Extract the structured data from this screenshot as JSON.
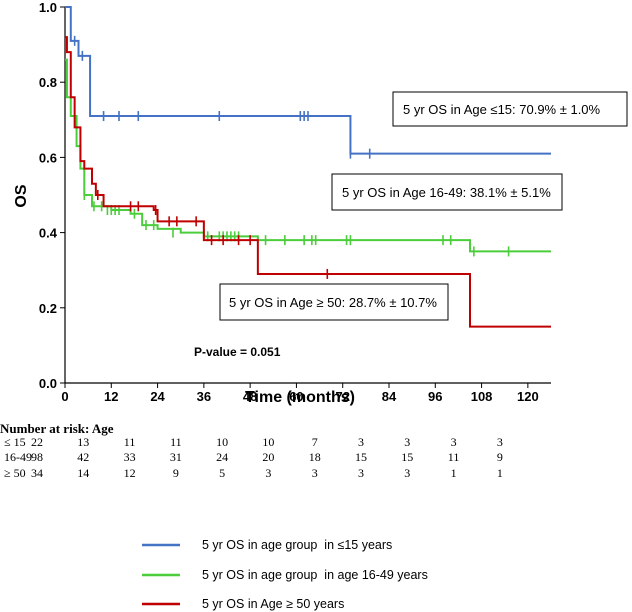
{
  "chart_data": {
    "type": "line",
    "subtype": "kaplan-meier",
    "xlabel": "Time (months)",
    "ylabel": "OS",
    "xlim": [
      0,
      126
    ],
    "ylim": [
      0,
      1.0
    ],
    "x_ticks": [
      0,
      12,
      24,
      36,
      48,
      60,
      72,
      84,
      96,
      108,
      120
    ],
    "y_ticks": [
      0.0,
      0.2,
      0.4,
      0.6,
      0.8,
      1.0
    ],
    "y_tick_labels": [
      "0.0",
      "0.2",
      "0.4",
      "0.6",
      "0.8",
      "1.0"
    ],
    "series": [
      {
        "name": "5 yr OS in age group  in ≤15 years",
        "color": "#4472c4",
        "steps": [
          [
            0,
            1.0
          ],
          [
            1.5,
            0.91
          ],
          [
            3.5,
            0.87
          ],
          [
            6.5,
            0.71
          ],
          [
            74,
            0.61
          ],
          [
            126,
            0.61
          ]
        ],
        "censors": [
          [
            2.5,
            0.91
          ],
          [
            4.5,
            0.87
          ],
          [
            10,
            0.71
          ],
          [
            14,
            0.71
          ],
          [
            19,
            0.71
          ],
          [
            40,
            0.71
          ],
          [
            61,
            0.71
          ],
          [
            62,
            0.71
          ],
          [
            63,
            0.71
          ],
          [
            74,
            0.61
          ],
          [
            79,
            0.61
          ]
        ]
      },
      {
        "name": "5 yr OS in age group  in age 16-49 years",
        "color": "#4ccd3c",
        "steps": [
          [
            0,
            0.86
          ],
          [
            0.5,
            0.76
          ],
          [
            1.5,
            0.71
          ],
          [
            3,
            0.63
          ],
          [
            4,
            0.57
          ],
          [
            5,
            0.5
          ],
          [
            7,
            0.47
          ],
          [
            12,
            0.46
          ],
          [
            17,
            0.45
          ],
          [
            20,
            0.42
          ],
          [
            24,
            0.41
          ],
          [
            30,
            0.4
          ],
          [
            36,
            0.39
          ],
          [
            50,
            0.38
          ],
          [
            101,
            0.38
          ],
          [
            105,
            0.35
          ],
          [
            126,
            0.35
          ]
        ],
        "censors": [
          [
            5,
            0.5
          ],
          [
            7.5,
            0.47
          ],
          [
            9.5,
            0.47
          ],
          [
            11,
            0.46
          ],
          [
            12,
            0.46
          ],
          [
            13,
            0.46
          ],
          [
            14,
            0.46
          ],
          [
            18,
            0.45
          ],
          [
            21,
            0.42
          ],
          [
            23,
            0.42
          ],
          [
            28,
            0.4
          ],
          [
            37,
            0.39
          ],
          [
            40,
            0.39
          ],
          [
            41,
            0.39
          ],
          [
            42,
            0.39
          ],
          [
            43,
            0.39
          ],
          [
            44,
            0.39
          ],
          [
            45,
            0.39
          ],
          [
            52,
            0.38
          ],
          [
            57,
            0.38
          ],
          [
            62,
            0.38
          ],
          [
            64,
            0.38
          ],
          [
            65,
            0.38
          ],
          [
            73,
            0.38
          ],
          [
            74,
            0.38
          ],
          [
            98,
            0.38
          ],
          [
            100,
            0.38
          ],
          [
            106,
            0.35
          ],
          [
            115,
            0.35
          ]
        ]
      },
      {
        "name": "5 yr OS in Age ≥ 50 years",
        "color": "#c00000",
        "steps": [
          [
            0,
            0.92
          ],
          [
            0.5,
            0.88
          ],
          [
            1.5,
            0.76
          ],
          [
            2.5,
            0.68
          ],
          [
            4,
            0.59
          ],
          [
            5,
            0.57
          ],
          [
            7,
            0.53
          ],
          [
            8,
            0.5
          ],
          [
            10,
            0.47
          ],
          [
            23,
            0.46
          ],
          [
            24,
            0.43
          ],
          [
            36,
            0.38
          ],
          [
            50,
            0.29
          ],
          [
            105,
            0.15
          ],
          [
            126,
            0.15
          ]
        ],
        "censors": [
          [
            8.5,
            0.5
          ],
          [
            17,
            0.47
          ],
          [
            19,
            0.47
          ],
          [
            23.5,
            0.46
          ],
          [
            27,
            0.43
          ],
          [
            29,
            0.43
          ],
          [
            34,
            0.43
          ],
          [
            38,
            0.38
          ],
          [
            41,
            0.38
          ],
          [
            45,
            0.38
          ],
          [
            48,
            0.38
          ],
          [
            68,
            0.29
          ]
        ]
      }
    ],
    "annotations": [
      "5 yr OS in Age ≤15: 70.9% ± 1.0%",
      "5 yr OS in Age 16-49: 38.1% ± 5.1%",
      "5 yr OS in Age ≥ 50: 28.7% ± 10.7%"
    ],
    "pvalue": "P-value = 0.051",
    "risk_table": {
      "title": "Number at risk: Age",
      "rows": [
        {
          "label": "≤ 15",
          "values": [
            "22",
            "13",
            "11",
            "11",
            "10",
            "10",
            "7",
            "3",
            "3",
            "3",
            "3"
          ]
        },
        {
          "label": "16-49",
          "values": [
            "98",
            "42",
            "33",
            "31",
            "24",
            "20",
            "18",
            "15",
            "15",
            "11",
            "9"
          ]
        },
        {
          "label": "≥ 50",
          "values": [
            "34",
            "14",
            "12",
            "9",
            "5",
            "3",
            "3",
            "3",
            "3",
            "1",
            "1"
          ]
        }
      ]
    }
  }
}
